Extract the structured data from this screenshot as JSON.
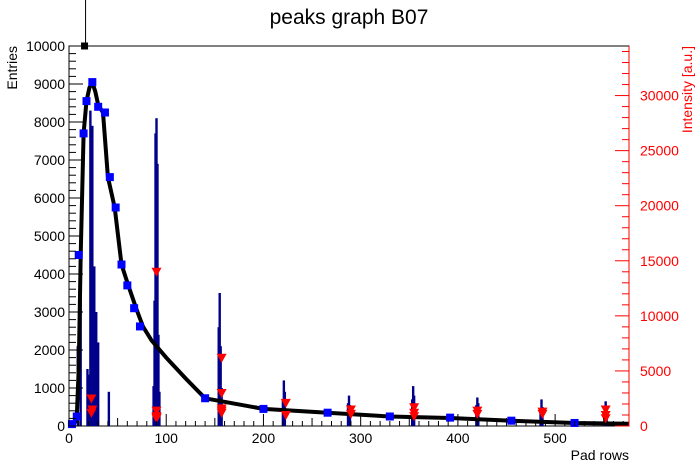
{
  "chart_data": {
    "type": "scatter",
    "title": "peaks graph B07",
    "xlabel": "Pad rows",
    "ylabel": "Entries",
    "y2label": "Intensity [a.u.]",
    "xlim": [
      0,
      576
    ],
    "ylim": [
      0,
      10000
    ],
    "y2lim": [
      0,
      34500
    ],
    "x_ticks": [
      0,
      100,
      200,
      300,
      400,
      500
    ],
    "x_tick_labels": [
      "0",
      "100",
      "200",
      "300",
      "400",
      "500"
    ],
    "y_ticks": [
      0,
      1000,
      2000,
      3000,
      4000,
      5000,
      6000,
      7000,
      8000,
      9000,
      10000
    ],
    "y_tick_labels": [
      "0",
      "1000",
      "2000",
      "3000",
      "4000",
      "5000",
      "6000",
      "7000",
      "8000",
      "9000",
      "10000"
    ],
    "y2_ticks": [
      0,
      5000,
      10000,
      15000,
      20000,
      25000,
      30000
    ],
    "y2_tick_labels": [
      "0",
      "5000",
      "10000",
      "15000",
      "20000",
      "25000",
      "30000"
    ],
    "colors": {
      "histogram": "#00008b",
      "curve": "#000000",
      "markers": "#0000ff",
      "right_axis": "#ff0000",
      "triangles": "#ff0000"
    },
    "series": [
      {
        "kind": "histogram-spikes",
        "color": "#00008b",
        "points": [
          {
            "x": 9,
            "y": 2100
          },
          {
            "x": 12,
            "y": 3800
          },
          {
            "x": 19,
            "y": 1500
          },
          {
            "x": 21,
            "y": 1350
          },
          {
            "x": 22,
            "y": 8300
          },
          {
            "x": 24,
            "y": 7900
          },
          {
            "x": 26,
            "y": 4200
          },
          {
            "x": 28,
            "y": 3000
          },
          {
            "x": 30,
            "y": 2200
          },
          {
            "x": 41,
            "y": 900
          },
          {
            "x": 87,
            "y": 1050
          },
          {
            "x": 88,
            "y": 3300
          },
          {
            "x": 89,
            "y": 7700
          },
          {
            "x": 90,
            "y": 8100
          },
          {
            "x": 91,
            "y": 6900
          },
          {
            "x": 92,
            "y": 2400
          },
          {
            "x": 93,
            "y": 900
          },
          {
            "x": 154,
            "y": 2600
          },
          {
            "x": 155,
            "y": 3500
          },
          {
            "x": 156,
            "y": 2100
          },
          {
            "x": 157,
            "y": 1000
          },
          {
            "x": 220,
            "y": 700
          },
          {
            "x": 221,
            "y": 1200
          },
          {
            "x": 222,
            "y": 900
          },
          {
            "x": 287,
            "y": 600
          },
          {
            "x": 288,
            "y": 800
          },
          {
            "x": 289,
            "y": 550
          },
          {
            "x": 353,
            "y": 700
          },
          {
            "x": 354,
            "y": 1050
          },
          {
            "x": 355,
            "y": 800
          },
          {
            "x": 419,
            "y": 550
          },
          {
            "x": 420,
            "y": 750
          },
          {
            "x": 421,
            "y": 600
          },
          {
            "x": 485,
            "y": 450
          },
          {
            "x": 486,
            "y": 700
          },
          {
            "x": 487,
            "y": 500
          },
          {
            "x": 551,
            "y": 500
          },
          {
            "x": 552,
            "y": 650
          },
          {
            "x": 553,
            "y": 450
          }
        ]
      },
      {
        "kind": "curve",
        "color": "#000000",
        "x": [
          2,
          5,
          8,
          10,
          12,
          15,
          18,
          21,
          24,
          27,
          30,
          35,
          40,
          47,
          54,
          61,
          69,
          76,
          85,
          100,
          120,
          140,
          200,
          266,
          330,
          392,
          455,
          520,
          576
        ],
        "y": [
          0,
          50,
          250,
          1500,
          4500,
          7700,
          8550,
          8900,
          9050,
          8800,
          8450,
          8250,
          6550,
          5750,
          4250,
          3700,
          3100,
          2620,
          2250,
          1800,
          1250,
          730,
          450,
          350,
          250,
          210,
          140,
          80,
          60
        ]
      },
      {
        "kind": "markers",
        "name": "squares",
        "color": "#0000ff",
        "x": [
          3,
          8,
          10,
          15,
          18,
          24,
          30,
          37,
          42,
          48,
          54,
          60,
          67,
          73,
          140,
          200,
          266,
          330,
          392,
          455,
          520
        ],
        "y": [
          50,
          250,
          4500,
          7700,
          8550,
          9050,
          8400,
          8250,
          6550,
          5750,
          4250,
          3700,
          3100,
          2620,
          730,
          450,
          350,
          250,
          220,
          140,
          80
        ]
      },
      {
        "kind": "markers",
        "name": "outlier",
        "color": "#000000",
        "x": [
          16
        ],
        "y": [
          10000
        ]
      },
      {
        "kind": "triangles",
        "axis": "right",
        "color": "#ff0000",
        "x": [
          23,
          23,
          24,
          90,
          90,
          90,
          90,
          90,
          157,
          157,
          157,
          157,
          157,
          223,
          223,
          290,
          290,
          355,
          355,
          355,
          420,
          420,
          487,
          487,
          552,
          552,
          552
        ],
        "y": [
          2500,
          1200,
          1500,
          14000,
          1400,
          800,
          700,
          900,
          6200,
          3000,
          1600,
          1200,
          1400,
          2100,
          1000,
          1500,
          1100,
          1700,
          1200,
          900,
          1400,
          1100,
          1300,
          1100,
          1500,
          1000,
          700
        ]
      }
    ]
  }
}
